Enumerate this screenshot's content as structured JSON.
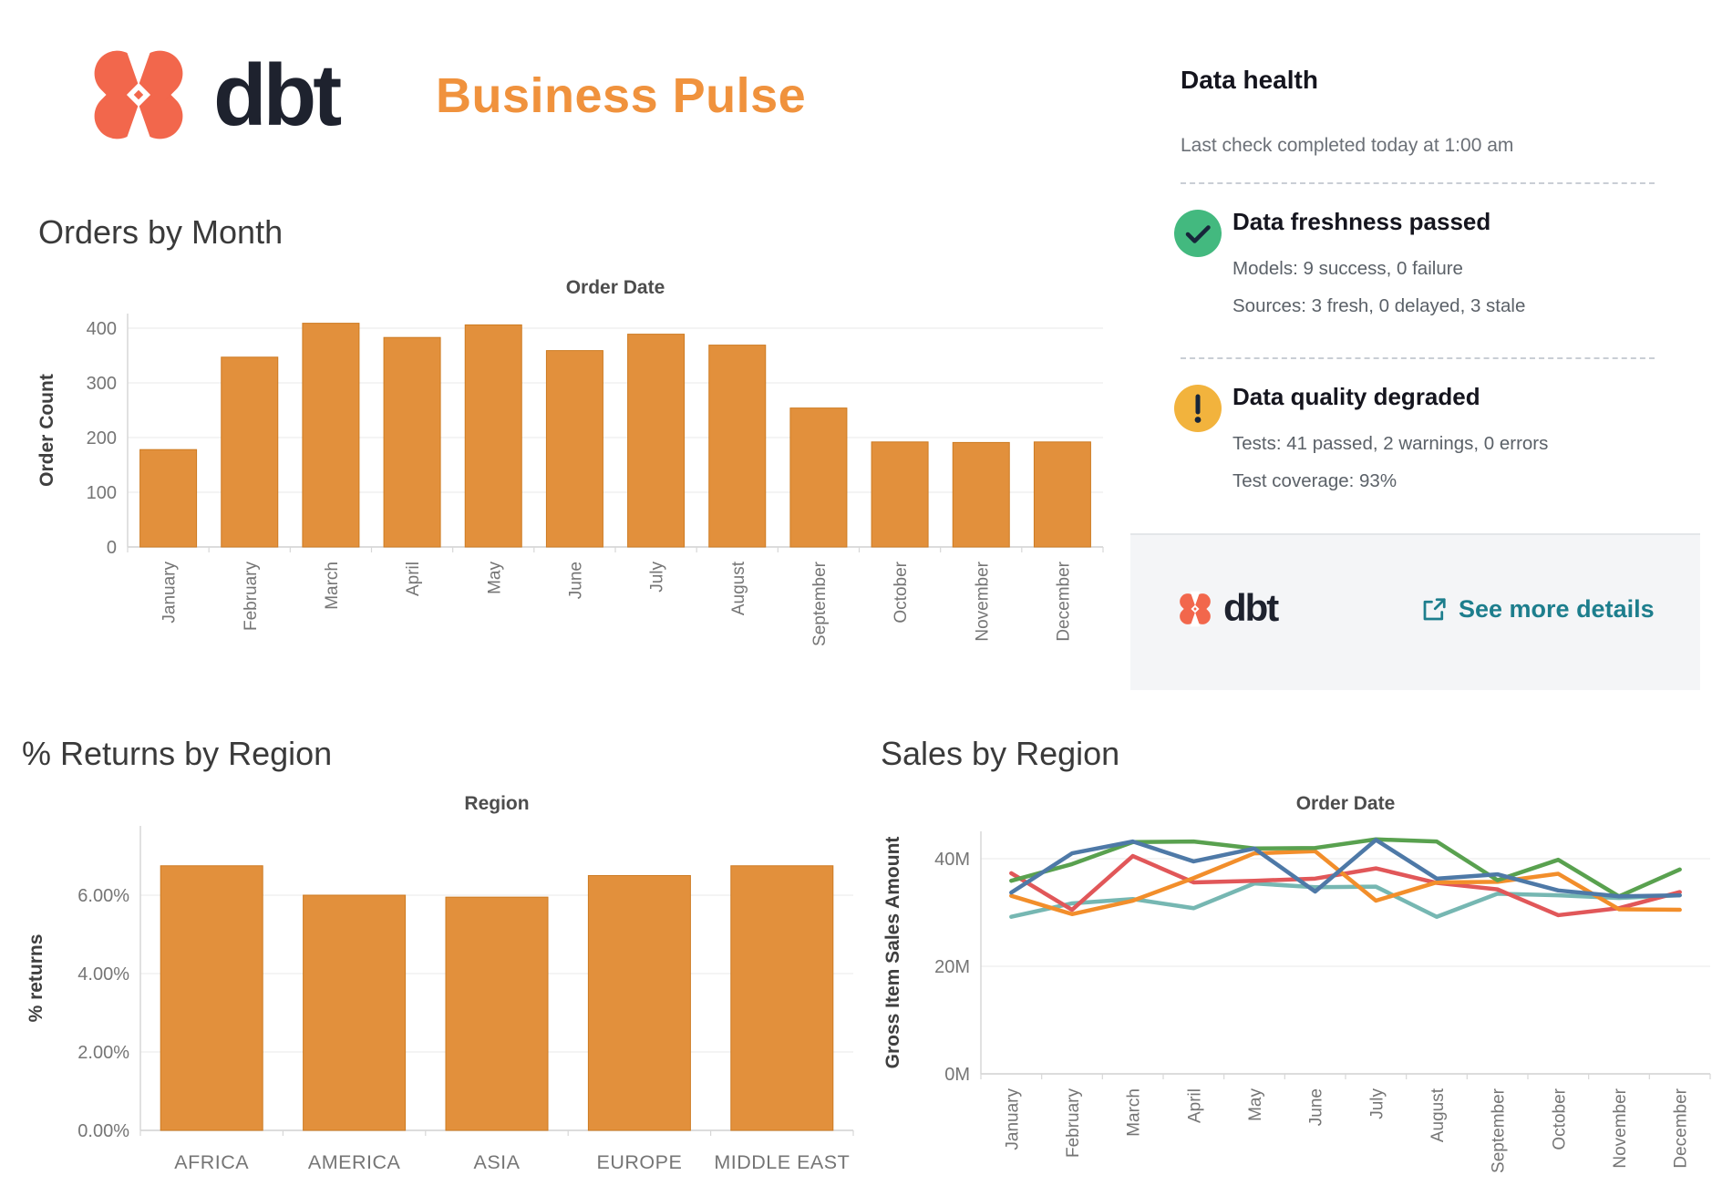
{
  "header": {
    "brand": "dbt",
    "title": "Business Pulse",
    "brand_color": "#f2674c",
    "accent_color": "#f0923d"
  },
  "data_health": {
    "title": "Data health",
    "last_check": "Last check completed today at 1:00 am",
    "sections": [
      {
        "icon": "check-circle",
        "icon_color": "#43b97f",
        "title": "Data freshness passed",
        "lines": [
          "Models: 9 success, 0 failure",
          "Sources: 3 fresh, 0 delayed, 3 stale"
        ]
      },
      {
        "icon": "warning-circle",
        "icon_color": "#f2b33d",
        "title": "Data quality degraded",
        "lines": [
          "Tests: 41 passed, 2 warnings, 0 errors",
          "Test coverage: 93%"
        ]
      }
    ],
    "footer": {
      "brand": "dbt",
      "link": "See more details",
      "link_color": "#1d7e8d"
    }
  },
  "chart_data": [
    {
      "id": "orders_by_month",
      "type": "bar",
      "section_title": "Orders by Month",
      "title": "Order Date",
      "ylabel": "Order Count",
      "categories": [
        "January",
        "February",
        "March",
        "April",
        "May",
        "June",
        "July",
        "August",
        "September",
        "October",
        "November",
        "December"
      ],
      "values": [
        178,
        347,
        409,
        383,
        406,
        359,
        389,
        369,
        254,
        192,
        191,
        192
      ],
      "ylim": [
        0,
        427
      ],
      "yticks": [
        {
          "v": 0,
          "label": "0"
        },
        {
          "v": 100,
          "label": "100"
        },
        {
          "v": 200,
          "label": "200"
        },
        {
          "v": 300,
          "label": "300"
        },
        {
          "v": 400,
          "label": "400"
        }
      ],
      "grid": true,
      "legend": "none",
      "bar_color": "#e2903c",
      "bar_border": "#cd7b22"
    },
    {
      "id": "returns_by_region",
      "type": "bar",
      "section_title": "% Returns by Region",
      "title": "Region",
      "ylabel": "% returns",
      "categories": [
        "AFRICA",
        "AMERICA",
        "ASIA",
        "EUROPE",
        "MIDDLE EAST"
      ],
      "values": [
        6.75,
        6.0,
        5.95,
        6.5,
        6.75
      ],
      "ylim": [
        0,
        7.8
      ],
      "yticks": [
        {
          "v": 0,
          "label": "0.00%"
        },
        {
          "v": 2,
          "label": "2.00%"
        },
        {
          "v": 4,
          "label": "4.00%"
        },
        {
          "v": 6,
          "label": "6.00%"
        }
      ],
      "grid": true,
      "legend": "none",
      "bar_color": "#e2903c",
      "bar_border": "#cd7b22"
    },
    {
      "id": "sales_by_region",
      "type": "line",
      "section_title": "Sales by Region",
      "title": "Order Date",
      "ylabel": "Gross Item Sales Amount",
      "x": [
        "January",
        "February",
        "March",
        "April",
        "May",
        "June",
        "July",
        "August",
        "September",
        "October",
        "November",
        "December"
      ],
      "series": [
        {
          "name": "teal",
          "color": "#76b7b2",
          "values": [
            29.2,
            31.7,
            32.5,
            30.8,
            35.4,
            34.7,
            34.8,
            29.2,
            33.5,
            33.2,
            32.7,
            33.2
          ]
        },
        {
          "name": "red",
          "color": "#e15759",
          "values": [
            37.3,
            30.5,
            40.5,
            35.6,
            35.9,
            36.3,
            38.2,
            35.5,
            34.3,
            29.5,
            30.8,
            33.8
          ]
        },
        {
          "name": "orange",
          "color": "#f28e2b",
          "values": [
            33.1,
            29.7,
            32.2,
            36.4,
            41.0,
            41.4,
            32.2,
            35.6,
            35.7,
            37.2,
            30.6,
            30.5
          ]
        },
        {
          "name": "green",
          "color": "#59a14f",
          "values": [
            35.9,
            39.0,
            43.1,
            43.2,
            41.9,
            42.0,
            43.6,
            43.2,
            36.0,
            39.8,
            33.0,
            38.0
          ]
        },
        {
          "name": "blue",
          "color": "#4e79a7",
          "values": [
            33.7,
            41.0,
            43.2,
            39.5,
            41.9,
            33.9,
            43.5,
            36.3,
            37.1,
            34.1,
            33.0,
            33.2
          ]
        }
      ],
      "ylim": [
        0,
        45
      ],
      "yticks": [
        {
          "v": 0,
          "label": "0M"
        },
        {
          "v": 20,
          "label": "20M"
        },
        {
          "v": 40,
          "label": "40M"
        }
      ],
      "grid": true,
      "legend": "none"
    }
  ]
}
